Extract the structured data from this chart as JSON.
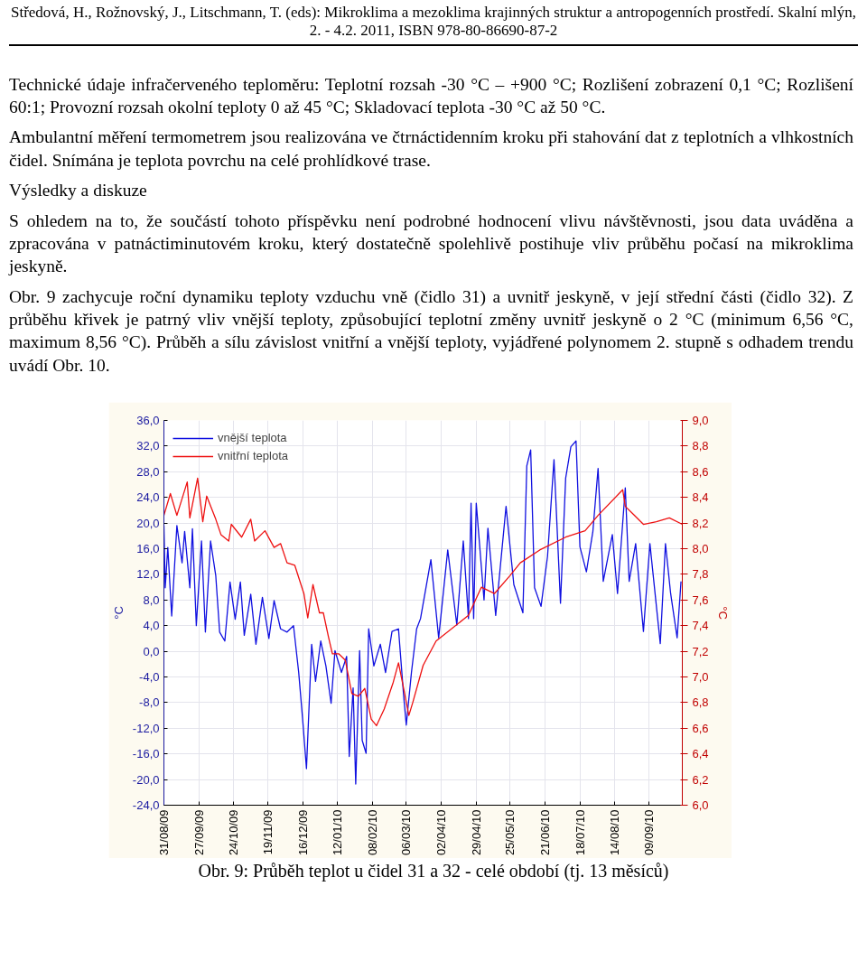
{
  "chart_data": {
    "type": "line",
    "title": "Obr. 9: Průběh teplot u čidel 31 a 32 - celé období (tj. 13 měsíců)",
    "annotations": [
      "Středová, H., Rožnovský, J., Litschmann, T. (eds): Mikroklima a mezoklima krajinných struktur a antropogenních prostředí. Skalní mlýn, 2. - 4.2. 2011, ISBN 978-80-86690-87-2",
      "Technické údaje infračerveného teploměru: Teplotní rozsah -30 °C – +900 °C; Rozlišení zobrazení 0,1 °C; Rozlišení 60:1; Provozní rozsah okolní teploty 0 až 45 °C; Skladovací teplota -30 °C až 50 °C.",
      "Ambulantní měření termometrem jsou realizována ve čtrnáctidenním kroku při stahování dat z teplotních a vlhkostních čidel. Snímána je teplota povrchu na celé prohlídkové trase.",
      "Výsledky a diskuze",
      "S ohledem na to, že součástí tohoto příspěvku není podrobné hodnocení vlivu návštěvnosti, jsou data uváděna a zpracována v patnáctiminutovém kroku, který dostatečně spolehlivě postihuje vliv průběhu počasí na mikroklima jeskyně.",
      "Obr. 9 zachycuje roční dynamiku teploty vzduchu vně (čidlo 31) a uvnitř jeskyně, v její střední části (čidlo 32). Z průběhu křivek je patrný vliv vnější teploty, způsobující teplotní změny uvnitř jeskyně o 2 °C (minimum 6,56 °C, maximum 8,56 °C). Průběh a sílu závislost vnitřní a vnější teploty, vyjádřené polynomem 2. stupně s odhadem trendu uvádí Obr. 10."
    ],
    "ylabel": "°C",
    "y2label": "°C",
    "xlim": [
      "2009-08-31",
      "2010-10-05"
    ],
    "xticks": [
      {
        "value": "2009-08-31",
        "label": "31/08/09"
      },
      {
        "value": "2009-09-27",
        "label": "27/09/09"
      },
      {
        "value": "2009-10-24",
        "label": "24/10/09"
      },
      {
        "value": "2009-11-19",
        "label": "19/11/09"
      },
      {
        "value": "2009-12-16",
        "label": "16/12/09"
      },
      {
        "value": "2010-01-12",
        "label": "12/01/10"
      },
      {
        "value": "2010-02-08",
        "label": "08/02/10"
      },
      {
        "value": "2010-03-06",
        "label": "06/03/10"
      },
      {
        "value": "2010-04-02",
        "label": "02/04/10"
      },
      {
        "value": "2010-04-29",
        "label": "29/04/10"
      },
      {
        "value": "2010-05-25",
        "label": "25/05/10"
      },
      {
        "value": "2010-06-21",
        "label": "21/06/10"
      },
      {
        "value": "2010-07-18",
        "label": "18/07/10"
      },
      {
        "value": "2010-08-14",
        "label": "14/08/10"
      },
      {
        "value": "2010-09-09",
        "label": "09/09/10"
      }
    ],
    "ylim": [
      -24,
      36
    ],
    "yticks": [
      {
        "value": -24,
        "label": "-24,0"
      },
      {
        "value": -20,
        "label": "-20,0"
      },
      {
        "value": -16,
        "label": "-16,0"
      },
      {
        "value": -12,
        "label": "-12,0"
      },
      {
        "value": -8,
        "label": "-8,0"
      },
      {
        "value": -4,
        "label": "-4,0"
      },
      {
        "value": 0,
        "label": "0,0"
      },
      {
        "value": 4,
        "label": "4,0"
      },
      {
        "value": 8,
        "label": "8,0"
      },
      {
        "value": 12,
        "label": "12,0"
      },
      {
        "value": 16,
        "label": "16,0"
      },
      {
        "value": 20,
        "label": "20,0"
      },
      {
        "value": 24,
        "label": "24,0"
      },
      {
        "value": 28,
        "label": "28,0"
      },
      {
        "value": 32,
        "label": "32,0"
      },
      {
        "value": 36,
        "label": "36,0"
      }
    ],
    "y2lim": [
      6.0,
      9.0
    ],
    "y2ticks": [
      {
        "value": 6.0,
        "label": "6,0"
      },
      {
        "value": 6.2,
        "label": "6,2"
      },
      {
        "value": 6.4,
        "label": "6,4"
      },
      {
        "value": 6.6,
        "label": "6,6"
      },
      {
        "value": 6.8,
        "label": "6,8"
      },
      {
        "value": 7.0,
        "label": "7,0"
      },
      {
        "value": 7.2,
        "label": "7,2"
      },
      {
        "value": 7.4,
        "label": "7,4"
      },
      {
        "value": 7.6,
        "label": "7,6"
      },
      {
        "value": 7.8,
        "label": "7,8"
      },
      {
        "value": 8.0,
        "label": "8,0"
      },
      {
        "value": 8.2,
        "label": "8,2"
      },
      {
        "value": 8.4,
        "label": "8,4"
      },
      {
        "value": 8.6,
        "label": "8,6"
      },
      {
        "value": 8.8,
        "label": "8,8"
      },
      {
        "value": 9.0,
        "label": "9,0"
      }
    ],
    "grid": true,
    "legend": "top left",
    "series": [
      {
        "name": "vnější teplota",
        "color": "#1010e0",
        "x": [
          "2009-08-31",
          "2009-09-01",
          "2009-09-03",
          "2009-09-06",
          "2009-09-10",
          "2009-09-14",
          "2009-09-16",
          "2009-09-20",
          "2009-09-22",
          "2009-09-25",
          "2009-09-29",
          "2009-10-02",
          "2009-10-06",
          "2009-10-10",
          "2009-10-13",
          "2009-10-17",
          "2009-10-21",
          "2009-10-25",
          "2009-10-29",
          "2009-11-01",
          "2009-11-06",
          "2009-11-10",
          "2009-11-15",
          "2009-11-20",
          "2009-11-24",
          "2009-11-29",
          "2009-12-04",
          "2009-12-09",
          "2009-12-13",
          "2009-12-16",
          "2009-12-19",
          "2009-12-23",
          "2009-12-26",
          "2009-12-30",
          "2010-01-03",
          "2010-01-07",
          "2010-01-10",
          "2010-01-15",
          "2010-01-19",
          "2010-01-21",
          "2010-01-24",
          "2010-01-26",
          "2010-01-29",
          "2010-01-31",
          "2010-02-03",
          "2010-02-05",
          "2010-02-09",
          "2010-02-14",
          "2010-02-18",
          "2010-02-23",
          "2010-02-28",
          "2010-03-04",
          "2010-03-06",
          "2010-03-10",
          "2010-03-14",
          "2010-03-17",
          "2010-03-25",
          "2010-03-31",
          "2010-04-07",
          "2010-04-14",
          "2010-04-19",
          "2010-04-23",
          "2010-04-25",
          "2010-04-27",
          "2010-04-29",
          "2010-05-05",
          "2010-05-08",
          "2010-05-14",
          "2010-05-22",
          "2010-05-28",
          "2010-06-04",
          "2010-06-07",
          "2010-06-10",
          "2010-06-13",
          "2010-06-18",
          "2010-06-23",
          "2010-06-28",
          "2010-07-03",
          "2010-07-07",
          "2010-07-11",
          "2010-07-15",
          "2010-07-18",
          "2010-07-23",
          "2010-07-28",
          "2010-08-01",
          "2010-08-05",
          "2010-08-12",
          "2010-08-16",
          "2010-08-22",
          "2010-08-25",
          "2010-08-30",
          "2010-09-05",
          "2010-09-10",
          "2010-09-18",
          "2010-09-22",
          "2010-09-26",
          "2010-10-01",
          "2010-10-04"
        ],
        "values": [
          19.6,
          9.9,
          16.2,
          5.5,
          19.6,
          13.8,
          18.7,
          9.9,
          19.1,
          4.0,
          17.2,
          3.0,
          17.2,
          11.8,
          3.0,
          1.6,
          10.8,
          5.0,
          10.8,
          2.5,
          8.9,
          1.1,
          8.4,
          2.0,
          7.9,
          3.5,
          3.0,
          4.0,
          -3.3,
          -10.5,
          -18.3,
          1.1,
          -4.7,
          1.6,
          -2.3,
          -8.1,
          0.1,
          -3.3,
          -0.8,
          -16.4,
          -5.7,
          -20.7,
          0.1,
          -13.9,
          -15.9,
          3.5,
          -2.3,
          1.1,
          -3.3,
          3.1,
          3.5,
          -7.0,
          -11.5,
          -3.3,
          3.5,
          5.1,
          14.3,
          2.1,
          15.8,
          4.1,
          17.2,
          5.1,
          23.1,
          5.1,
          23.1,
          8.0,
          19.2,
          5.6,
          22.6,
          10.4,
          6.0,
          28.9,
          31.4,
          9.9,
          7.0,
          14.8,
          29.9,
          7.5,
          27.0,
          31.9,
          32.8,
          16.3,
          12.4,
          18.7,
          28.5,
          10.9,
          18.2,
          9.0,
          25.5,
          10.9,
          16.8,
          3.1,
          16.8,
          1.2,
          16.8,
          9.0,
          2.1,
          10.9
        ]
      },
      {
        "name": "vnitřní teplota",
        "color": "#ee1111",
        "axis": "y2",
        "x": [
          "2009-08-31",
          "2009-09-05",
          "2009-09-10",
          "2009-09-18",
          "2009-09-20",
          "2009-09-26",
          "2009-09-30",
          "2009-10-03",
          "2009-10-10",
          "2009-10-14",
          "2009-10-20",
          "2009-10-22",
          "2009-10-30",
          "2009-11-06",
          "2009-11-09",
          "2009-11-17",
          "2009-11-24",
          "2009-11-29",
          "2009-12-04",
          "2009-12-10",
          "2009-12-17",
          "2009-12-20",
          "2009-12-24",
          "2009-12-29",
          "2010-01-01",
          "2010-01-05",
          "2010-01-08",
          "2010-01-13",
          "2010-01-18",
          "2010-01-23",
          "2010-01-28",
          "2010-02-02",
          "2010-02-07",
          "2010-02-11",
          "2010-02-17",
          "2010-02-24",
          "2010-02-28",
          "2010-03-04",
          "2010-03-08",
          "2010-03-11",
          "2010-03-19",
          "2010-03-29",
          "2010-04-23",
          "2010-05-03",
          "2010-05-13",
          "2010-05-25",
          "2010-06-02",
          "2010-06-17",
          "2010-07-07",
          "2010-07-22",
          "2010-08-01",
          "2010-08-20",
          "2010-08-22",
          "2010-08-29",
          "2010-09-05",
          "2010-09-15",
          "2010-09-25",
          "2010-10-05"
        ],
        "values": [
          8.26,
          8.43,
          8.26,
          8.52,
          8.24,
          8.55,
          8.21,
          8.41,
          8.23,
          8.11,
          8.06,
          8.19,
          8.09,
          8.23,
          8.06,
          8.14,
          8.01,
          8.04,
          7.89,
          7.87,
          7.65,
          7.46,
          7.72,
          7.5,
          7.5,
          7.31,
          7.18,
          7.18,
          7.13,
          6.87,
          6.85,
          6.91,
          6.67,
          6.62,
          6.75,
          6.96,
          7.11,
          6.91,
          6.7,
          6.8,
          7.09,
          7.28,
          7.48,
          7.7,
          7.65,
          7.79,
          7.89,
          7.99,
          8.09,
          8.14,
          8.26,
          8.46,
          8.33,
          8.26,
          8.19,
          8.21,
          8.24,
          8.19
        ]
      }
    ]
  }
}
